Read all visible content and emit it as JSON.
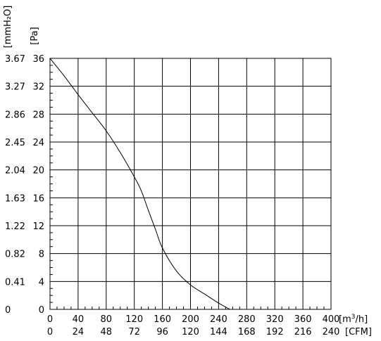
{
  "chart_data": {
    "type": "line",
    "title": "",
    "xlabel_primary": "[m³/h]",
    "xlabel_primary_base": "[m",
    "xlabel_primary_sup": "3",
    "xlabel_primary_tail": "/h]",
    "xlabel_secondary": "[CFM]",
    "ylabel_primary": "[Pa]",
    "ylabel_secondary": "[mmH₂O]",
    "xlim": [
      0,
      400
    ],
    "ylim": [
      0,
      36
    ],
    "x_ticks_m3h": [
      "0",
      "40",
      "80",
      "120",
      "160",
      "200",
      "240",
      "280",
      "320",
      "360",
      "400"
    ],
    "x_ticks_cfm": [
      "0",
      "24",
      "48",
      "72",
      "96",
      "120",
      "144",
      "168",
      "192",
      "216",
      "240"
    ],
    "y_ticks_pa": [
      "0",
      "4",
      "8",
      "12",
      "16",
      "20",
      "24",
      "28",
      "32",
      "36"
    ],
    "y_ticks_mmh2o": [
      "0",
      "0.41",
      "0.82",
      "1.22",
      "1.63",
      "2.04",
      "2.45",
      "2.86",
      "3.27",
      "3.67"
    ],
    "grid": true,
    "series": [
      {
        "name": "",
        "color": "#000000",
        "x": [
          0,
          20,
          40,
          60,
          80,
          100,
          120,
          130,
          140,
          150,
          160,
          180,
          200,
          220,
          240,
          256
        ],
        "y": [
          36,
          33.5,
          30.8,
          28.2,
          25.6,
          22.5,
          19,
          17,
          14.2,
          11.5,
          8.8,
          5.5,
          3.5,
          2.2,
          0.9,
          0
        ]
      }
    ]
  }
}
